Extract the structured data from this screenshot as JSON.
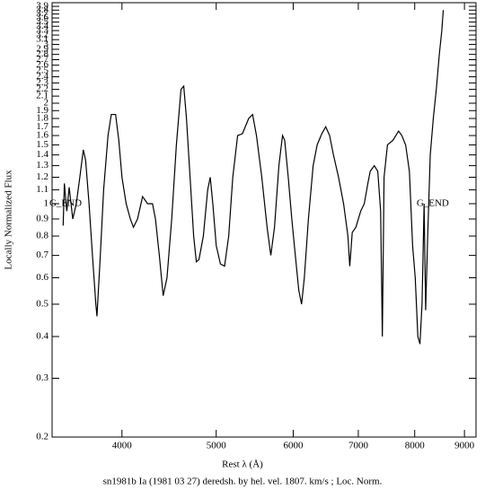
{
  "chart_data": {
    "type": "line",
    "title": "sn1981b Ia (1981 03 27) deredsh. by hel. vel.  1807. km/s ;  Loc. Norm.",
    "x_label": "Rest λ (Å)",
    "y_label": "Locally Normalized Flux",
    "xlog": true,
    "ylog": true,
    "xlim": [
      3390,
      9250
    ],
    "ylim": [
      0.2,
      4.0
    ],
    "xticks": [
      4000,
      5000,
      6000,
      7000,
      8000,
      9000
    ],
    "yticks": [
      0.2,
      0.3,
      0.4,
      0.5,
      0.6,
      0.7,
      0.8,
      0.9,
      1,
      1.1,
      1.2,
      1.3,
      1.4,
      1.5,
      1.6,
      1.7,
      1.8,
      1.9,
      2,
      2.1,
      2.2,
      2.3,
      2.4,
      2.5,
      2.6,
      2.7,
      2.8,
      2.9,
      3,
      3.1,
      3.2,
      3.3,
      3.4,
      3.5,
      3.6,
      3.7,
      3.8,
      3.9
    ],
    "annotations": [
      {
        "text": "G_END",
        "x": 3500,
        "y": 1
      },
      {
        "text": "G_END",
        "x": 8350,
        "y": 1
      }
    ],
    "series": [
      {
        "name": "sn1981b",
        "color": "#000000",
        "x": [
          3480,
          3490,
          3510,
          3530,
          3560,
          3590,
          3620,
          3650,
          3670,
          3700,
          3730,
          3760,
          3770,
          3800,
          3830,
          3870,
          3900,
          3940,
          3970,
          4000,
          4040,
          4080,
          4110,
          4150,
          4200,
          4250,
          4300,
          4330,
          4370,
          4410,
          4450,
          4500,
          4550,
          4600,
          4630,
          4660,
          4700,
          4740,
          4770,
          4800,
          4850,
          4900,
          4930,
          4960,
          5000,
          5050,
          5100,
          5150,
          5200,
          5260,
          5320,
          5400,
          5450,
          5500,
          5570,
          5640,
          5690,
          5740,
          5800,
          5850,
          5880,
          5930,
          5980,
          6030,
          6080,
          6120,
          6160,
          6220,
          6290,
          6350,
          6420,
          6480,
          6540,
          6600,
          6680,
          6760,
          6830,
          6860,
          6900,
          6960,
          7040,
          7100,
          7160,
          7200,
          7270,
          7330,
          7380,
          7410,
          7440,
          7500,
          7600,
          7700,
          7760,
          7830,
          7900,
          7960,
          8010,
          8060,
          8100,
          8140,
          8180,
          8210,
          8250,
          8300,
          8360,
          8420,
          8480,
          8530,
          8560
        ],
        "values": [
          0.86,
          1.15,
          0.95,
          1.12,
          0.9,
          1.0,
          1.2,
          1.45,
          1.35,
          1.0,
          0.7,
          0.5,
          0.46,
          0.7,
          1.1,
          1.6,
          1.85,
          1.85,
          1.55,
          1.2,
          1.0,
          0.9,
          0.85,
          0.9,
          1.05,
          1.0,
          1.0,
          0.9,
          0.7,
          0.53,
          0.6,
          0.9,
          1.5,
          2.2,
          2.25,
          1.8,
          1.2,
          0.8,
          0.67,
          0.68,
          0.8,
          1.1,
          1.2,
          1.0,
          0.75,
          0.66,
          0.65,
          0.8,
          1.2,
          1.6,
          1.62,
          1.8,
          1.85,
          1.6,
          1.2,
          0.85,
          0.7,
          0.85,
          1.3,
          1.6,
          1.55,
          1.2,
          0.9,
          0.7,
          0.55,
          0.5,
          0.6,
          0.9,
          1.3,
          1.5,
          1.62,
          1.7,
          1.6,
          1.4,
          1.2,
          1.0,
          0.8,
          0.65,
          0.82,
          0.85,
          0.95,
          1.0,
          1.15,
          1.25,
          1.3,
          1.25,
          0.95,
          0.4,
          1.2,
          1.5,
          1.55,
          1.65,
          1.6,
          1.5,
          1.25,
          0.75,
          0.6,
          0.4,
          0.38,
          0.5,
          1.0,
          0.48,
          0.8,
          1.4,
          1.8,
          2.2,
          2.8,
          3.3,
          3.8
        ]
      }
    ]
  }
}
